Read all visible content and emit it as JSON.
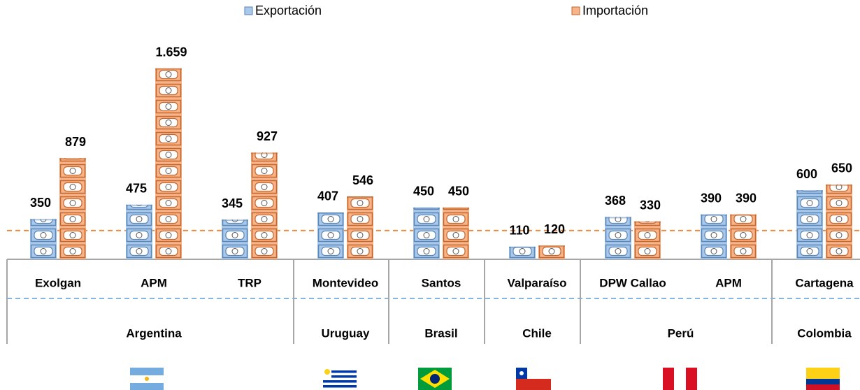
{
  "chart_data": {
    "type": "pictograph-bar",
    "groups": [
      {
        "name": "Argentina",
        "categories": [
          "Exolgan",
          "APM",
          "TRP"
        ]
      },
      {
        "name": "Uruguay",
        "categories": [
          "Montevideo"
        ]
      },
      {
        "name": "Brasil",
        "categories": [
          "Santos"
        ]
      },
      {
        "name": "Chile",
        "categories": [
          "Valparaíso"
        ]
      },
      {
        "name": "Perú",
        "categories": [
          "DPW Callao",
          "APM"
        ]
      },
      {
        "name": "Colombia",
        "categories": [
          "Cartagena"
        ]
      }
    ],
    "series": [
      {
        "name": "Exportación",
        "color": "#a9c8ea",
        "edge": "#5a86b8",
        "values": [
          350,
          475,
          345,
          407,
          450,
          110,
          368,
          390,
          600
        ]
      },
      {
        "name": "Importación",
        "color": "#f5b48a",
        "edge": "#c8662a",
        "values": [
          879,
          1659,
          927,
          546,
          450,
          120,
          330,
          390,
          650
        ],
        "value_labels": [
          "879",
          "1.659",
          "927",
          "546",
          "450",
          "120",
          "330",
          "390",
          "650"
        ]
      }
    ],
    "ylim": [
      0,
      1700
    ],
    "reference_line": {
      "value": 250,
      "color": "#f0883e"
    }
  }
}
